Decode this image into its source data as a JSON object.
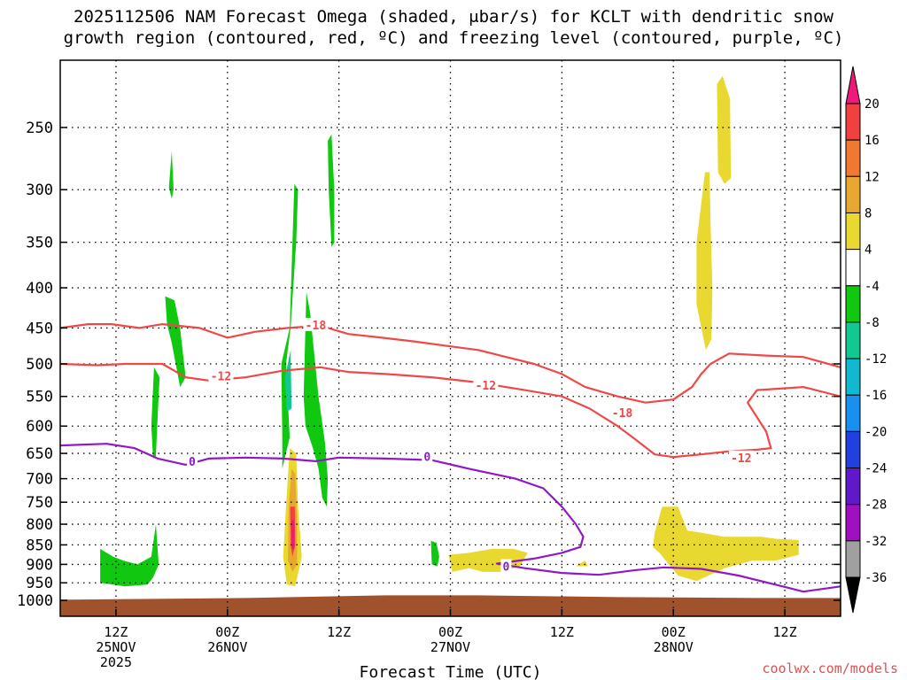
{
  "chart_data": {
    "type": "heatmap",
    "title_line1": "2025112506 NAM Forecast Omega (shaded, μbar/s) for KCLT with dendritic snow",
    "title_line2": "growth region (contoured, red, ºC) and freezing level (contoured, purple, ºC)",
    "xlabel": "Forecast Time (UTC)",
    "ylabel": "",
    "credit": "coolwx.com/models",
    "x_range_hours": [
      0,
      84
    ],
    "y_range_hpa": [
      1000,
      200
    ],
    "y_scale": "log-pressure",
    "grid": "dotted",
    "y_ticks": [
      250,
      300,
      350,
      400,
      450,
      500,
      550,
      600,
      650,
      700,
      750,
      800,
      850,
      900,
      950,
      1000
    ],
    "x_ticks": [
      {
        "h": 6,
        "l1": "12Z",
        "l2": "25NOV",
        "l3": "2025"
      },
      {
        "h": 18,
        "l1": "00Z",
        "l2": "26NOV",
        "l3": ""
      },
      {
        "h": 30,
        "l1": "12Z",
        "l2": "",
        "l3": ""
      },
      {
        "h": 42,
        "l1": "00Z",
        "l2": "27NOV",
        "l3": ""
      },
      {
        "h": 54,
        "l1": "12Z",
        "l2": "",
        "l3": ""
      },
      {
        "h": 66,
        "l1": "00Z",
        "l2": "28NOV",
        "l3": ""
      },
      {
        "h": 78,
        "l1": "12Z",
        "l2": "",
        "l3": ""
      }
    ],
    "colorbar": {
      "labels": [
        "20",
        "16",
        "12",
        "8",
        "4",
        "-4",
        "-8",
        "-12",
        "-16",
        "-20",
        "-24",
        "-28",
        "-32",
        "-36"
      ],
      "colors": [
        "#f01878",
        "#f04040",
        "#f07830",
        "#e8a830",
        "#e8d830",
        "#ffffff",
        "#10c810",
        "#10c890",
        "#10b8d0",
        "#1890f0",
        "#2040e0",
        "#6018c8",
        "#a010c0",
        "#a0a0a0",
        "#000000"
      ]
    },
    "ground_color": "#a0522d",
    "omega_regions": [
      {
        "name": "sink-green-1",
        "color": "#10c810",
        "pts": [
          [
            4.3,
            860
          ],
          [
            5.7,
            880
          ],
          [
            6.8,
            890
          ],
          [
            8.3,
            900
          ],
          [
            9.8,
            880
          ],
          [
            10.3,
            800
          ],
          [
            10.6,
            900
          ],
          [
            10,
            935
          ],
          [
            9.4,
            955
          ],
          [
            7,
            960
          ],
          [
            5.7,
            955
          ],
          [
            4.3,
            950
          ]
        ]
      },
      {
        "name": "sink-green-2",
        "color": "#10c810",
        "pts": [
          [
            10.1,
            505
          ],
          [
            10.7,
            520
          ],
          [
            10.5,
            580
          ],
          [
            10.3,
            655
          ],
          [
            10,
            660
          ],
          [
            9.8,
            600
          ]
        ]
      },
      {
        "name": "sink-green-3",
        "color": "#10c810",
        "pts": [
          [
            11.7,
            298
          ],
          [
            12,
            268
          ],
          [
            12.2,
            300
          ],
          [
            12,
            308
          ]
        ]
      },
      {
        "name": "sink-green-4",
        "color": "#10c810",
        "pts": [
          [
            11.3,
            410
          ],
          [
            12.3,
            415
          ],
          [
            12.9,
            450
          ],
          [
            13.5,
            520
          ],
          [
            12.9,
            535
          ],
          [
            12,
            470
          ],
          [
            11.5,
            445
          ]
        ]
      },
      {
        "name": "sink-green-5",
        "color": "#10c810",
        "pts": [
          [
            24.3,
            500
          ],
          [
            24.8,
            450
          ],
          [
            25.4,
            350
          ],
          [
            25.6,
            300
          ],
          [
            25.2,
            295
          ],
          [
            24.7,
            450
          ],
          [
            23.8,
            500
          ],
          [
            23.9,
            620
          ],
          [
            23.9,
            680
          ],
          [
            24.7,
            620
          ]
        ]
      },
      {
        "name": "sink-teal-5",
        "color": "#10c890",
        "pts": [
          [
            24.2,
            520
          ],
          [
            24.8,
            480
          ],
          [
            24.9,
            570
          ],
          [
            24.4,
            575
          ]
        ]
      },
      {
        "name": "sink-green-6",
        "color": "#10c810",
        "pts": [
          [
            26.2,
            550
          ],
          [
            26.5,
            405
          ],
          [
            26.9,
            430
          ],
          [
            27.8,
            550
          ],
          [
            28.5,
            630
          ],
          [
            28.8,
            700
          ],
          [
            28.7,
            760
          ],
          [
            28.2,
            740
          ],
          [
            27.8,
            680
          ],
          [
            27.2,
            640
          ],
          [
            26.4,
            600
          ]
        ]
      },
      {
        "name": "sink-green-7",
        "color": "#10c810",
        "pts": [
          [
            28.8,
            260
          ],
          [
            29.2,
            255
          ],
          [
            29.5,
            300
          ],
          [
            29.5,
            350
          ],
          [
            29.2,
            355
          ],
          [
            28.9,
            300
          ]
        ]
      },
      {
        "name": "sink-green-8",
        "color": "#10c810",
        "pts": [
          [
            39.9,
            840
          ],
          [
            40.5,
            845
          ],
          [
            40.8,
            880
          ],
          [
            40.6,
            905
          ],
          [
            40,
            900
          ]
        ]
      },
      {
        "name": "rise-yellow-1",
        "color": "#e8d830",
        "pts": [
          [
            24.3,
            760
          ],
          [
            24.7,
            640
          ],
          [
            25.4,
            650
          ],
          [
            25.6,
            760
          ],
          [
            26,
            880
          ],
          [
            25.3,
            960
          ],
          [
            24.4,
            955
          ],
          [
            24,
            880
          ]
        ]
      },
      {
        "name": "rise-orange-1",
        "color": "#e8a830",
        "pts": [
          [
            24.6,
            760
          ],
          [
            24.9,
            680
          ],
          [
            25.3,
            690
          ],
          [
            25.5,
            800
          ],
          [
            25.5,
            900
          ],
          [
            25,
            920
          ],
          [
            24.5,
            890
          ]
        ]
      },
      {
        "name": "rise-red-1",
        "color": "#f04040",
        "pts": [
          [
            24.75,
            760
          ],
          [
            25.25,
            760
          ],
          [
            25.3,
            850
          ],
          [
            25,
            880
          ],
          [
            24.8,
            850
          ]
        ]
      },
      {
        "name": "rise-magenta-1",
        "color": "#f01878",
        "pts": [
          [
            24.9,
            790
          ],
          [
            25.2,
            790
          ],
          [
            25.2,
            860
          ],
          [
            24.95,
            860
          ]
        ]
      },
      {
        "name": "rise-yellow-2",
        "color": "#e8d830",
        "pts": [
          [
            41.8,
            875
          ],
          [
            44,
            870
          ],
          [
            46.5,
            860
          ],
          [
            48.8,
            860
          ],
          [
            50.3,
            870
          ],
          [
            49.5,
            905
          ],
          [
            47.5,
            920
          ],
          [
            45.5,
            920
          ],
          [
            44,
            910
          ],
          [
            42.2,
            920
          ]
        ]
      },
      {
        "name": "rise-yellow-3",
        "color": "#e8d830",
        "pts": [
          [
            55.5,
            905
          ],
          [
            56.5,
            890
          ],
          [
            56.8,
            905
          ]
        ]
      },
      {
        "name": "rise-yellow-4",
        "color": "#e8d830",
        "pts": [
          [
            64,
            820
          ],
          [
            64.8,
            760
          ],
          [
            66.5,
            760
          ],
          [
            67.5,
            815
          ],
          [
            69,
            820
          ],
          [
            71.5,
            830
          ],
          [
            75.5,
            830
          ],
          [
            77,
            835
          ],
          [
            79.5,
            838
          ],
          [
            79.5,
            875
          ],
          [
            77,
            890
          ],
          [
            74.5,
            890
          ],
          [
            71.5,
            910
          ],
          [
            68.5,
            945
          ],
          [
            66.5,
            930
          ],
          [
            65.5,
            900
          ],
          [
            64.5,
            870
          ],
          [
            63.8,
            855
          ]
        ]
      },
      {
        "name": "rise-yellow-5",
        "color": "#e8d830",
        "pts": [
          [
            70.7,
            220
          ],
          [
            71.3,
            215
          ],
          [
            72.1,
            230
          ],
          [
            72.2,
            290
          ],
          [
            71.5,
            295
          ],
          [
            70.8,
            285
          ]
        ]
      },
      {
        "name": "rise-yellow-6",
        "color": "#e8d830",
        "pts": [
          [
            68.5,
            350
          ],
          [
            69.4,
            285
          ],
          [
            69.9,
            285
          ],
          [
            70,
            330
          ],
          [
            70.2,
            400
          ],
          [
            70.1,
            465
          ],
          [
            69.5,
            480
          ],
          [
            68.5,
            420
          ]
        ]
      }
    ],
    "contours": [
      {
        "name": "temp-minus18-contour",
        "color": "#f04848",
        "label": "-18",
        "label_at": [
          27.5,
          446
        ],
        "pts": [
          [
            0,
            450
          ],
          [
            3,
            445
          ],
          [
            5.5,
            445
          ],
          [
            8.5,
            450
          ],
          [
            11,
            445
          ],
          [
            15,
            450
          ],
          [
            18,
            463
          ],
          [
            21,
            455
          ],
          [
            24.5,
            450
          ],
          [
            28,
            447
          ],
          [
            31,
            458
          ],
          [
            34,
            462
          ],
          [
            38,
            468
          ],
          [
            42,
            475
          ],
          [
            45,
            480
          ],
          [
            48,
            490
          ],
          [
            51,
            500
          ],
          [
            54,
            515
          ],
          [
            56.5,
            535
          ],
          [
            60,
            550
          ],
          [
            63,
            560
          ],
          [
            66,
            555
          ],
          [
            68,
            535
          ],
          [
            69,
            515
          ],
          [
            70,
            500
          ],
          [
            72,
            485
          ],
          [
            76,
            488
          ],
          [
            80,
            490
          ],
          [
            84,
            505
          ]
        ]
      },
      {
        "name": "temp-minus12-contour",
        "color": "#f04848",
        "label": "-12",
        "label_at": [
          17.3,
          518
        ],
        "pts": [
          [
            0,
            500
          ],
          [
            4,
            502
          ],
          [
            7,
            500
          ],
          [
            11,
            500
          ],
          [
            13.5,
            520
          ],
          [
            16,
            525
          ],
          [
            20,
            520
          ],
          [
            24,
            510
          ],
          [
            28,
            505
          ],
          [
            31,
            512
          ],
          [
            35,
            515
          ],
          [
            40,
            520
          ],
          [
            45,
            528
          ],
          [
            50,
            540
          ],
          [
            54,
            550
          ],
          [
            57,
            570
          ],
          [
            60,
            600
          ],
          [
            62,
            625
          ],
          [
            64,
            652
          ],
          [
            66,
            657
          ],
          [
            69,
            652
          ],
          [
            72,
            646
          ],
          [
            75,
            643
          ],
          [
            76.5,
            640
          ],
          [
            76,
            610
          ],
          [
            74,
            560
          ],
          [
            75,
            540
          ],
          [
            80,
            535
          ],
          [
            84,
            550
          ]
        ]
      },
      {
        "name": "freezing-level-contour",
        "color": "#9018c8",
        "label": "0",
        "label_at": [
          39.5,
          656
        ],
        "pts": [
          [
            0,
            635
          ],
          [
            5,
            632
          ],
          [
            8,
            640
          ],
          [
            10.5,
            660
          ],
          [
            13.5,
            672
          ],
          [
            16,
            660
          ],
          [
            20,
            658
          ],
          [
            24,
            660
          ],
          [
            27.5,
            665
          ],
          [
            30,
            658
          ],
          [
            35,
            660
          ],
          [
            40,
            663
          ],
          [
            44,
            680
          ],
          [
            49,
            700
          ],
          [
            52,
            720
          ],
          [
            54,
            760
          ],
          [
            55.5,
            800
          ],
          [
            56.3,
            830
          ],
          [
            56,
            855
          ],
          [
            54,
            870
          ],
          [
            51,
            885
          ],
          [
            47,
            898
          ],
          [
            50,
            910
          ],
          [
            54,
            923
          ],
          [
            58,
            928
          ],
          [
            62,
            915
          ],
          [
            65,
            908
          ],
          [
            69,
            912
          ],
          [
            73,
            930
          ],
          [
            77,
            955
          ],
          [
            80,
            975
          ],
          [
            84,
            960
          ]
        ]
      }
    ],
    "contour_labels_extra": [
      {
        "text": "-12",
        "h": 45.8,
        "p": 532,
        "color": "#f04848"
      },
      {
        "text": "-18",
        "h": 60.5,
        "p": 577,
        "color": "#f04848"
      },
      {
        "text": "-12",
        "h": 73.3,
        "p": 658,
        "color": "#f04848"
      },
      {
        "text": "0",
        "h": 14.2,
        "p": 665,
        "color": "#9018c8"
      },
      {
        "text": "0",
        "h": 48,
        "p": 905,
        "color": "#9018c8"
      }
    ]
  }
}
